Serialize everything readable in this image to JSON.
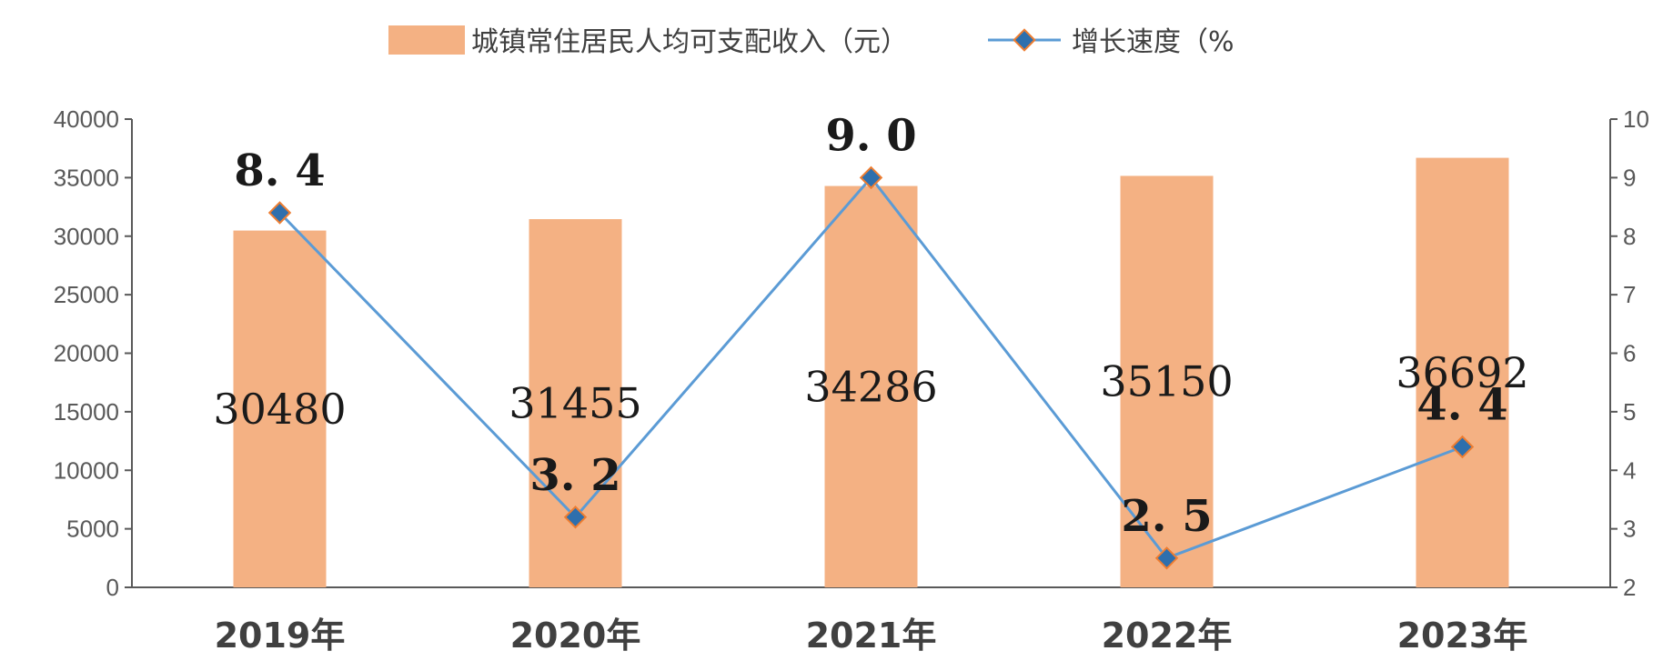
{
  "chart_data": {
    "type": "bar",
    "categories": [
      "2019年",
      "2020年",
      "2021年",
      "2022年",
      "2023年"
    ],
    "series": [
      {
        "name": "城镇常住居民人均可支配收入（元）",
        "type": "bar",
        "axis": "left",
        "values": [
          30480,
          31455,
          34286,
          35150,
          36692
        ],
        "labels": [
          "30480",
          "31455",
          "34286",
          "35150",
          "36692"
        ],
        "color": "#F4B183"
      },
      {
        "name": "增长速度（%",
        "type": "line",
        "axis": "right",
        "values": [
          8.4,
          3.2,
          9.0,
          2.5,
          4.4
        ],
        "labels": [
          "8. 4",
          "3. 2",
          "9. 0",
          "2. 5",
          "4. 4"
        ],
        "color": "#5B9BD5",
        "marker_color": "#ED7D31"
      }
    ],
    "y_left": {
      "min": 0,
      "max": 40000,
      "ticks": [
        0,
        5000,
        10000,
        15000,
        20000,
        25000,
        30000,
        35000,
        40000
      ],
      "tick_labels": [
        "0",
        "5000",
        "10000",
        "15000",
        "20000",
        "25000",
        "30000",
        "35000",
        "40000"
      ]
    },
    "y_right": {
      "min": 2,
      "max": 10,
      "ticks": [
        2,
        3,
        4,
        5,
        6,
        7,
        8,
        9,
        10
      ],
      "tick_labels": [
        "2",
        "3",
        "4",
        "5",
        "6",
        "7",
        "8",
        "9",
        "10"
      ]
    },
    "grid": false,
    "legend_position": "top-center",
    "title": "",
    "xlabel": "",
    "ylabel": ""
  }
}
